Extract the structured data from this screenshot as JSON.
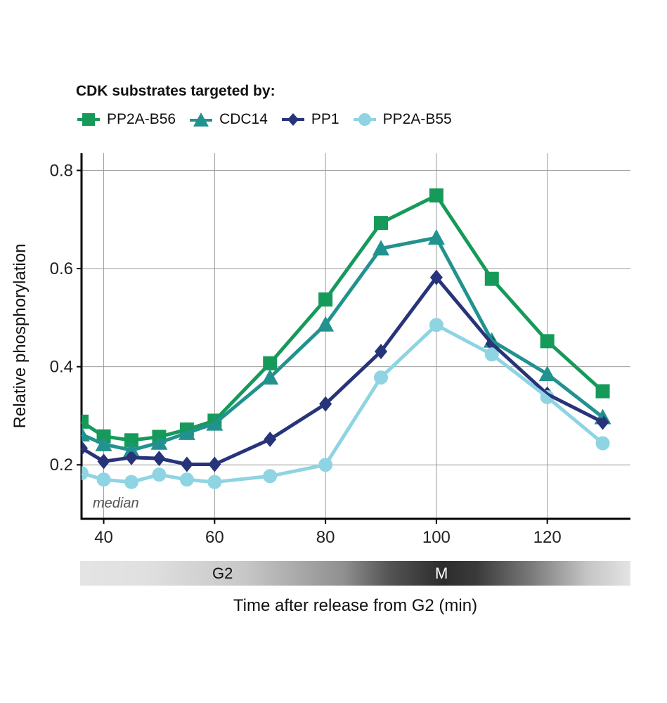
{
  "chart_data": {
    "type": "line",
    "legend_title": "CDK substrates targeted by:",
    "legend_position": "top-left",
    "ylabel": "Relative phosphorylation",
    "xlabel": "Time after release from G2 (min)",
    "annotation": "median",
    "xlim": [
      36,
      135
    ],
    "ylim": [
      0.09,
      0.835
    ],
    "x_ticks": [
      40,
      60,
      80,
      100,
      120
    ],
    "y_ticks": [
      0.2,
      0.4,
      0.6,
      0.8
    ],
    "y_tick_labels": [
      "0.2",
      "0.4",
      "0.6",
      "0.8"
    ],
    "grid": true,
    "x": [
      36,
      40,
      45,
      50,
      55,
      60,
      70,
      80,
      90,
      100,
      110,
      120,
      130
    ],
    "series": [
      {
        "name": "PP2A-B56",
        "color": "#169a5a",
        "marker": "square",
        "values": [
          0.288,
          0.258,
          0.25,
          0.257,
          0.272,
          0.29,
          0.407,
          0.537,
          0.693,
          0.749,
          0.579,
          0.452,
          0.35
        ]
      },
      {
        "name": "CDC14",
        "color": "#22928f",
        "marker": "triangle",
        "values": [
          0.262,
          0.242,
          0.23,
          0.245,
          0.265,
          0.284,
          0.378,
          0.486,
          0.641,
          0.663,
          0.453,
          0.385,
          0.297
        ]
      },
      {
        "name": "PP1",
        "color": "#283479",
        "marker": "diamond",
        "values": [
          0.234,
          0.207,
          0.215,
          0.213,
          0.201,
          0.201,
          0.252,
          0.324,
          0.431,
          0.582,
          0.447,
          0.344,
          0.287
        ]
      },
      {
        "name": "PP2A-B55",
        "color": "#8ed4e3",
        "marker": "circle",
        "values": [
          0.183,
          0.17,
          0.165,
          0.18,
          0.17,
          0.165,
          0.177,
          0.2,
          0.378,
          0.485,
          0.425,
          0.338,
          0.244
        ]
      }
    ],
    "phase_bar": {
      "labels": [
        "G2",
        "M"
      ]
    }
  }
}
